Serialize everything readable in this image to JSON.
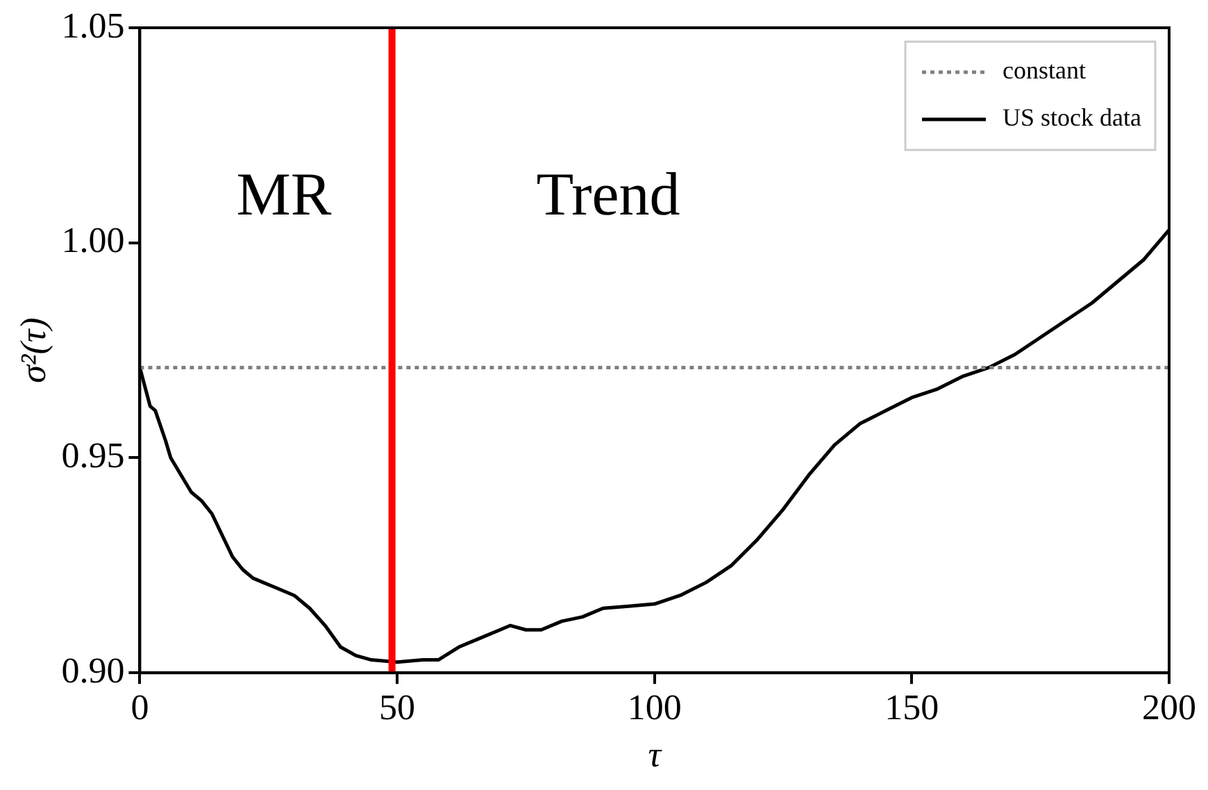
{
  "chart_data": {
    "type": "line",
    "xlabel": "τ",
    "ylabel": "σ²(τ)",
    "xlim": [
      0,
      200
    ],
    "xticks": [
      0,
      50,
      100,
      150,
      200
    ],
    "ylim": [
      0.9,
      1.05
    ],
    "yticks": [
      {
        "value": 0.9,
        "label": "0.90"
      },
      {
        "value": 0.95,
        "label": "0.95"
      },
      {
        "value": 1.0,
        "label": "1.00"
      },
      {
        "value": 1.05,
        "label": "1.05"
      }
    ],
    "grid": false,
    "legend": "top right",
    "marker": "none",
    "series": [
      {
        "name": "constant",
        "color": "#808080",
        "line_style": "dotted",
        "x": [
          0,
          200
        ],
        "values": [
          0.971,
          0.971
        ]
      },
      {
        "name": "US stock data",
        "color": "#000000",
        "line_style": "solid",
        "x": [
          0,
          2,
          3,
          5,
          6,
          8,
          10,
          12,
          14,
          16,
          18,
          20,
          22,
          24,
          26,
          28,
          30,
          33,
          36,
          39,
          42,
          45,
          50,
          55,
          58,
          62,
          66,
          70,
          72,
          75,
          78,
          82,
          86,
          90,
          95,
          100,
          105,
          110,
          115,
          120,
          125,
          130,
          135,
          140,
          145,
          150,
          155,
          160,
          165,
          170,
          175,
          180,
          185,
          190,
          195,
          200
        ],
        "values": [
          0.971,
          0.962,
          0.961,
          0.954,
          0.95,
          0.946,
          0.942,
          0.94,
          0.937,
          0.932,
          0.927,
          0.924,
          0.922,
          0.921,
          0.92,
          0.919,
          0.918,
          0.915,
          0.911,
          0.906,
          0.904,
          0.903,
          0.9025,
          0.903,
          0.903,
          0.906,
          0.908,
          0.91,
          0.911,
          0.91,
          0.91,
          0.912,
          0.913,
          0.915,
          0.9155,
          0.916,
          0.918,
          0.921,
          0.925,
          0.931,
          0.938,
          0.946,
          0.953,
          0.958,
          0.961,
          0.964,
          0.966,
          0.969,
          0.971,
          0.974,
          0.978,
          0.982,
          0.986,
          0.991,
          0.996,
          1.003
        ]
      }
    ],
    "ref_lines": [
      {
        "axis": "x",
        "value": 49,
        "color": "#ff0000",
        "line_style": "solid"
      }
    ],
    "annotations": [
      "MR",
      "Trend"
    ]
  }
}
